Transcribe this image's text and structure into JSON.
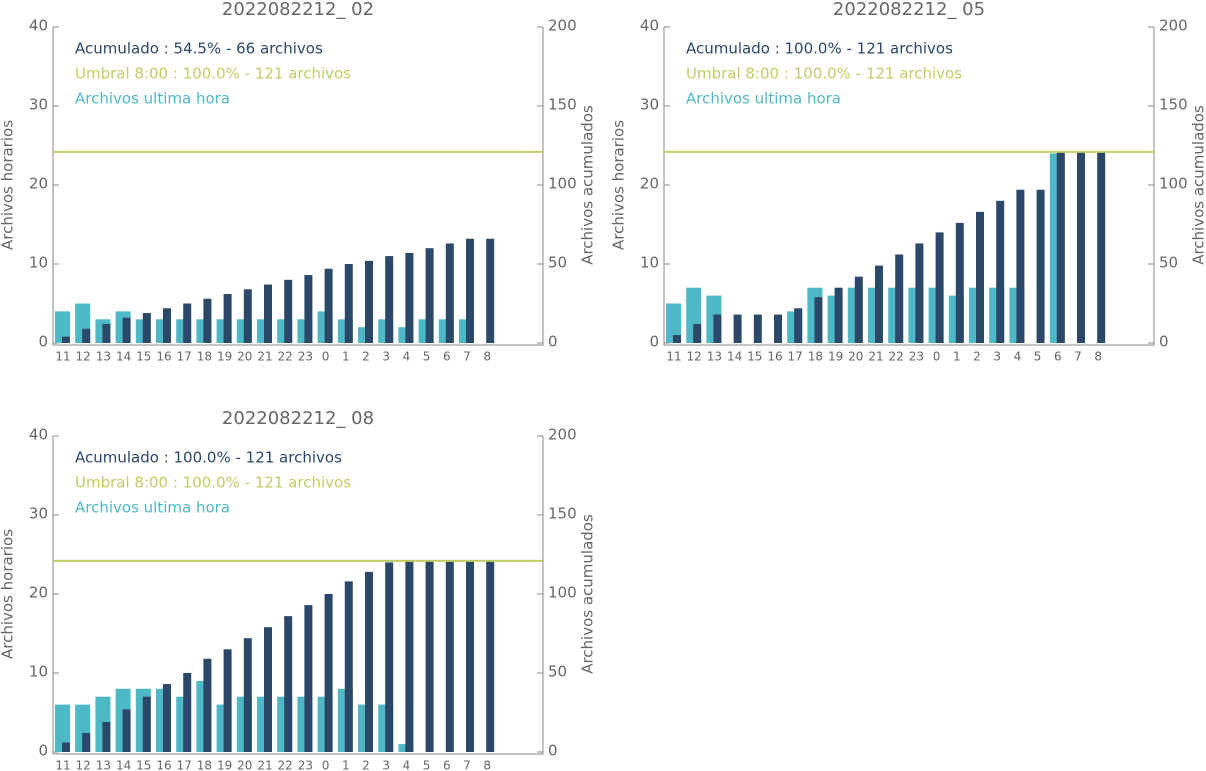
{
  "chart_data": [
    {
      "type": "bar",
      "title": "2022082212_ 02",
      "categories": [
        "11",
        "12",
        "13",
        "14",
        "15",
        "16",
        "17",
        "18",
        "19",
        "20",
        "21",
        "22",
        "23",
        "0",
        "1",
        "2",
        "3",
        "4",
        "5",
        "6",
        "7",
        "8"
      ],
      "series": [
        {
          "name": "Archivos ultima hora",
          "color": "#4fb8c6",
          "axis": "y",
          "values": [
            4,
            5,
            3,
            4,
            3,
            3,
            3,
            3,
            3,
            3,
            3,
            3,
            3,
            4,
            3,
            2,
            3,
            2,
            3,
            3,
            3,
            null
          ]
        },
        {
          "name": "Acumulado : 54.5% - 66 archivos",
          "color": "#2b4868",
          "axis": "y2",
          "values": [
            4,
            9,
            12,
            16,
            19,
            22,
            25,
            28,
            31,
            34,
            37,
            40,
            43,
            47,
            50,
            52,
            55,
            57,
            60,
            63,
            66,
            66
          ]
        }
      ],
      "threshold": {
        "name": "Umbral 8:00 : 100.0% - 121 archivos",
        "color": "#c3cc62",
        "axis": "y2",
        "value": 121
      },
      "ylabel": "Archivos horarios",
      "y2label": "Archivos acumulados",
      "ylim": [
        0,
        40
      ],
      "yticks": [
        0,
        10,
        20,
        30,
        40
      ],
      "y2lim": [
        0,
        200
      ],
      "y2ticks": [
        0,
        50,
        100,
        150,
        200
      ]
    },
    {
      "type": "bar",
      "title": "2022082212_ 05",
      "categories": [
        "11",
        "12",
        "13",
        "14",
        "15",
        "16",
        "17",
        "18",
        "19",
        "20",
        "21",
        "22",
        "23",
        "0",
        "1",
        "2",
        "3",
        "4",
        "5",
        "6",
        "7",
        "8"
      ],
      "series": [
        {
          "name": "Archivos ultima hora",
          "color": "#4fb8c6",
          "axis": "y",
          "values": [
            5,
            7,
            6,
            null,
            null,
            null,
            4,
            7,
            6,
            7,
            7,
            7,
            7,
            7,
            6,
            7,
            7,
            7,
            null,
            24,
            null,
            null
          ]
        },
        {
          "name": "Acumulado : 100.0% - 121 archivos",
          "color": "#2b4868",
          "axis": "y2",
          "values": [
            5,
            12,
            18,
            18,
            18,
            18,
            22,
            29,
            35,
            42,
            49,
            56,
            63,
            70,
            76,
            83,
            90,
            97,
            97,
            121,
            121,
            121
          ]
        }
      ],
      "threshold": {
        "name": "Umbral 8:00 : 100.0% - 121 archivos",
        "color": "#c3cc62",
        "axis": "y2",
        "value": 121
      },
      "ylabel": "Archivos horarios",
      "y2label": "Archivos acumulados",
      "ylim": [
        0,
        40
      ],
      "yticks": [
        0,
        10,
        20,
        30,
        40
      ],
      "y2lim": [
        0,
        200
      ],
      "y2ticks": [
        0,
        50,
        100,
        150,
        200
      ]
    },
    {
      "type": "bar",
      "title": "2022082212_ 08",
      "categories": [
        "11",
        "12",
        "13",
        "14",
        "15",
        "16",
        "17",
        "18",
        "19",
        "20",
        "21",
        "22",
        "23",
        "0",
        "1",
        "2",
        "3",
        "4",
        "5",
        "6",
        "7",
        "8"
      ],
      "series": [
        {
          "name": "Archivos ultima hora",
          "color": "#4fb8c6",
          "axis": "y",
          "values": [
            6,
            6,
            7,
            8,
            8,
            8,
            7,
            9,
            6,
            7,
            7,
            7,
            7,
            7,
            8,
            6,
            6,
            1,
            null,
            null,
            null,
            null
          ]
        },
        {
          "name": "Acumulado : 100.0% - 121 archivos",
          "color": "#2b4868",
          "axis": "y2",
          "values": [
            6,
            12,
            19,
            27,
            35,
            43,
            50,
            59,
            65,
            72,
            79,
            86,
            93,
            100,
            108,
            114,
            120,
            121,
            121,
            121,
            121,
            121
          ]
        }
      ],
      "threshold": {
        "name": "Umbral 8:00 : 100.0% - 121 archivos",
        "color": "#c3cc62",
        "axis": "y2",
        "value": 121
      },
      "ylabel": "Archivos horarios",
      "y2label": "Archivos acumulados",
      "ylim": [
        0,
        40
      ],
      "yticks": [
        0,
        10,
        20,
        30,
        40
      ],
      "y2lim": [
        0,
        200
      ],
      "y2ticks": [
        0,
        50,
        100,
        150,
        200
      ]
    }
  ]
}
